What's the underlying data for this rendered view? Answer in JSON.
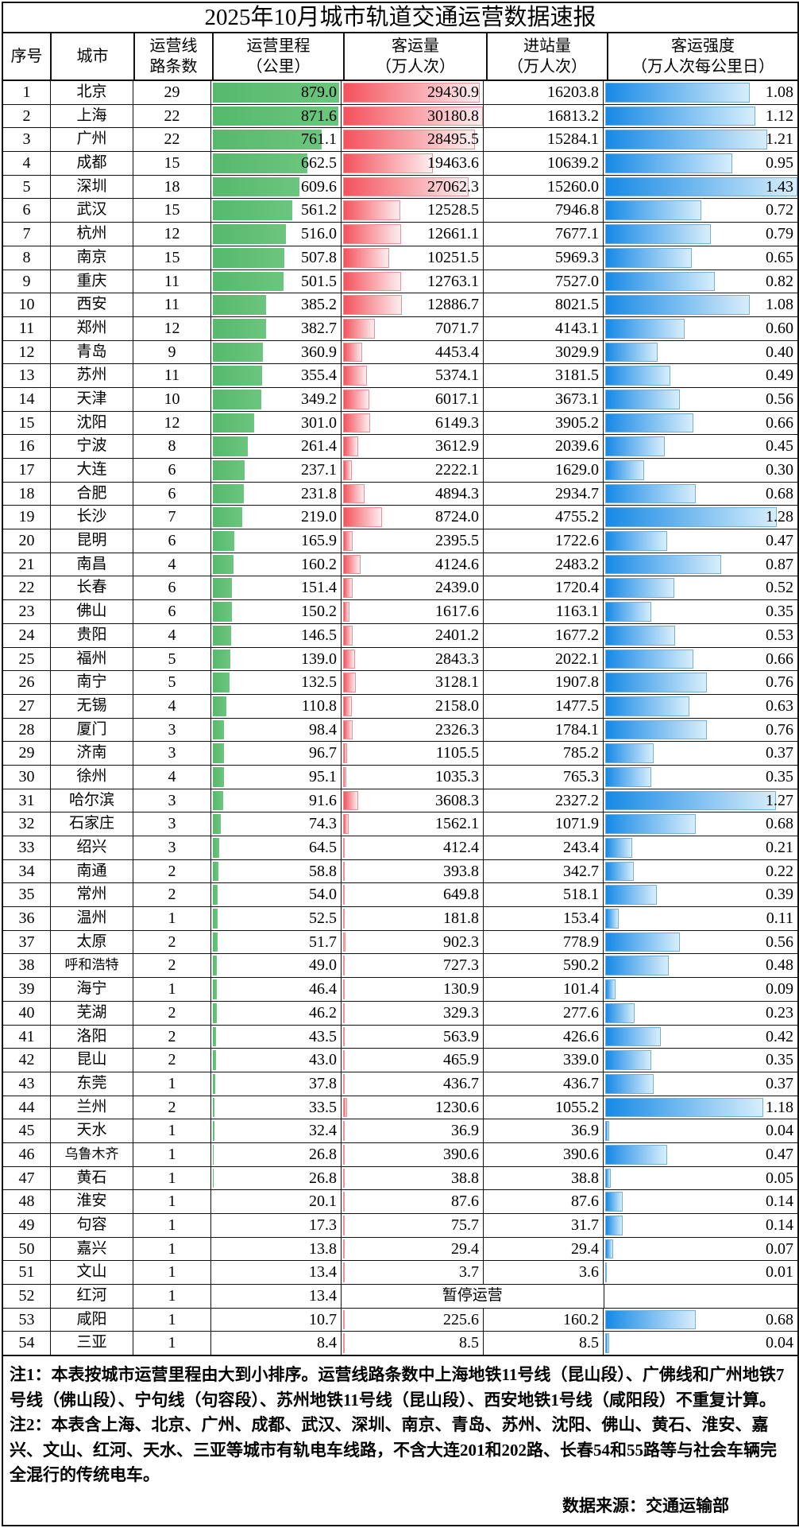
{
  "title": "2025年10月城市轨道交通运营数据速报",
  "chart_data": {
    "type": "table",
    "title": "2025年10月城市轨道交通运营数据速报",
    "columns": [
      {
        "id": "rank",
        "line1": "序号",
        "line2": ""
      },
      {
        "id": "city",
        "line1": "城市",
        "line2": ""
      },
      {
        "id": "lines",
        "line1": "运营线",
        "line2": "路条数"
      },
      {
        "id": "mileage",
        "line1": "运营里程",
        "line2": "（公里）"
      },
      {
        "id": "volume",
        "line1": "客运量",
        "line2": "（万人次）"
      },
      {
        "id": "entries",
        "line1": "进站量",
        "line2": "（万人次）"
      },
      {
        "id": "intensity",
        "line1": "客运强度",
        "line2": "（万人次每公里日）"
      }
    ],
    "bar_styles": {
      "mileage": {
        "type": "data-bar",
        "color": "#5cbd72"
      },
      "volume": {
        "type": "data-bar-gradient",
        "color_left": "#f4525c",
        "color_right": "#fdeef0",
        "border": "#ef9096"
      },
      "intensity": {
        "type": "data-bar-gradient",
        "color_left": "#1689e6",
        "color_right": "#d7eefb",
        "border": "#74b0d8"
      }
    },
    "suspended_label": "暂停运营",
    "rows": [
      {
        "rank": 1,
        "city": "北京",
        "lines": 29,
        "mileage": "879.0",
        "volume": "29430.9",
        "entries": "16203.8",
        "intensity": "1.08"
      },
      {
        "rank": 2,
        "city": "上海",
        "lines": 22,
        "mileage": "871.6",
        "volume": "30180.8",
        "entries": "16813.2",
        "intensity": "1.12"
      },
      {
        "rank": 3,
        "city": "广州",
        "lines": 22,
        "mileage": "761.1",
        "volume": "28495.5",
        "entries": "15284.1",
        "intensity": "1.21"
      },
      {
        "rank": 4,
        "city": "成都",
        "lines": 15,
        "mileage": "662.5",
        "volume": "19463.6",
        "entries": "10639.2",
        "intensity": "0.95"
      },
      {
        "rank": 5,
        "city": "深圳",
        "lines": 18,
        "mileage": "609.6",
        "volume": "27062.3",
        "entries": "15260.0",
        "intensity": "1.43"
      },
      {
        "rank": 6,
        "city": "武汉",
        "lines": 15,
        "mileage": "561.2",
        "volume": "12528.5",
        "entries": "7946.8",
        "intensity": "0.72"
      },
      {
        "rank": 7,
        "city": "杭州",
        "lines": 12,
        "mileage": "516.0",
        "volume": "12661.1",
        "entries": "7677.1",
        "intensity": "0.79"
      },
      {
        "rank": 8,
        "city": "南京",
        "lines": 15,
        "mileage": "507.8",
        "volume": "10251.5",
        "entries": "5969.3",
        "intensity": "0.65"
      },
      {
        "rank": 9,
        "city": "重庆",
        "lines": 11,
        "mileage": "501.5",
        "volume": "12763.1",
        "entries": "7527.0",
        "intensity": "0.82"
      },
      {
        "rank": 10,
        "city": "西安",
        "lines": 11,
        "mileage": "385.2",
        "volume": "12886.7",
        "entries": "8021.5",
        "intensity": "1.08"
      },
      {
        "rank": 11,
        "city": "郑州",
        "lines": 12,
        "mileage": "382.7",
        "volume": "7071.7",
        "entries": "4143.1",
        "intensity": "0.60"
      },
      {
        "rank": 12,
        "city": "青岛",
        "lines": 9,
        "mileage": "360.9",
        "volume": "4453.4",
        "entries": "3029.9",
        "intensity": "0.40"
      },
      {
        "rank": 13,
        "city": "苏州",
        "lines": 11,
        "mileage": "355.4",
        "volume": "5374.1",
        "entries": "3181.5",
        "intensity": "0.49"
      },
      {
        "rank": 14,
        "city": "天津",
        "lines": 10,
        "mileage": "349.2",
        "volume": "6017.1",
        "entries": "3673.1",
        "intensity": "0.56"
      },
      {
        "rank": 15,
        "city": "沈阳",
        "lines": 12,
        "mileage": "301.0",
        "volume": "6149.3",
        "entries": "3905.2",
        "intensity": "0.66"
      },
      {
        "rank": 16,
        "city": "宁波",
        "lines": 8,
        "mileage": "261.4",
        "volume": "3612.9",
        "entries": "2039.6",
        "intensity": "0.45"
      },
      {
        "rank": 17,
        "city": "大连",
        "lines": 6,
        "mileage": "237.1",
        "volume": "2222.1",
        "entries": "1629.0",
        "intensity": "0.30"
      },
      {
        "rank": 18,
        "city": "合肥",
        "lines": 6,
        "mileage": "231.8",
        "volume": "4894.3",
        "entries": "2934.7",
        "intensity": "0.68"
      },
      {
        "rank": 19,
        "city": "长沙",
        "lines": 7,
        "mileage": "219.0",
        "volume": "8724.0",
        "entries": "4755.2",
        "intensity": "1.28"
      },
      {
        "rank": 20,
        "city": "昆明",
        "lines": 6,
        "mileage": "165.9",
        "volume": "2395.5",
        "entries": "1722.6",
        "intensity": "0.47"
      },
      {
        "rank": 21,
        "city": "南昌",
        "lines": 4,
        "mileage": "160.2",
        "volume": "4124.6",
        "entries": "2483.2",
        "intensity": "0.87"
      },
      {
        "rank": 22,
        "city": "长春",
        "lines": 6,
        "mileage": "151.4",
        "volume": "2439.0",
        "entries": "1720.4",
        "intensity": "0.52"
      },
      {
        "rank": 23,
        "city": "佛山",
        "lines": 6,
        "mileage": "150.2",
        "volume": "1617.6",
        "entries": "1163.1",
        "intensity": "0.35"
      },
      {
        "rank": 24,
        "city": "贵阳",
        "lines": 4,
        "mileage": "146.5",
        "volume": "2401.2",
        "entries": "1677.2",
        "intensity": "0.53"
      },
      {
        "rank": 25,
        "city": "福州",
        "lines": 5,
        "mileage": "139.0",
        "volume": "2843.3",
        "entries": "2022.1",
        "intensity": "0.66"
      },
      {
        "rank": 26,
        "city": "南宁",
        "lines": 5,
        "mileage": "132.5",
        "volume": "3128.1",
        "entries": "1907.8",
        "intensity": "0.76"
      },
      {
        "rank": 27,
        "city": "无锡",
        "lines": 4,
        "mileage": "110.8",
        "volume": "2158.0",
        "entries": "1477.5",
        "intensity": "0.63"
      },
      {
        "rank": 28,
        "city": "厦门",
        "lines": 3,
        "mileage": "98.4",
        "volume": "2326.3",
        "entries": "1784.1",
        "intensity": "0.76"
      },
      {
        "rank": 29,
        "city": "济南",
        "lines": 3,
        "mileage": "96.7",
        "volume": "1105.5",
        "entries": "785.2",
        "intensity": "0.37"
      },
      {
        "rank": 30,
        "city": "徐州",
        "lines": 4,
        "mileage": "95.1",
        "volume": "1035.3",
        "entries": "765.3",
        "intensity": "0.35"
      },
      {
        "rank": 31,
        "city": "哈尔滨",
        "lines": 3,
        "mileage": "91.6",
        "volume": "3608.3",
        "entries": "2327.2",
        "intensity": "1.27"
      },
      {
        "rank": 32,
        "city": "石家庄",
        "lines": 3,
        "mileage": "74.3",
        "volume": "1562.1",
        "entries": "1071.9",
        "intensity": "0.68"
      },
      {
        "rank": 33,
        "city": "绍兴",
        "lines": 3,
        "mileage": "64.5",
        "volume": "412.4",
        "entries": "243.4",
        "intensity": "0.21"
      },
      {
        "rank": 34,
        "city": "南通",
        "lines": 2,
        "mileage": "58.8",
        "volume": "393.8",
        "entries": "342.7",
        "intensity": "0.22"
      },
      {
        "rank": 35,
        "city": "常州",
        "lines": 2,
        "mileage": "54.0",
        "volume": "649.8",
        "entries": "518.1",
        "intensity": "0.39"
      },
      {
        "rank": 36,
        "city": "温州",
        "lines": 1,
        "mileage": "52.5",
        "volume": "181.8",
        "entries": "153.4",
        "intensity": "0.11"
      },
      {
        "rank": 37,
        "city": "太原",
        "lines": 2,
        "mileage": "51.7",
        "volume": "902.3",
        "entries": "778.9",
        "intensity": "0.56"
      },
      {
        "rank": 38,
        "city": "呼和浩特",
        "lines": 2,
        "mileage": "49.0",
        "volume": "727.3",
        "entries": "590.2",
        "intensity": "0.48"
      },
      {
        "rank": 39,
        "city": "海宁",
        "lines": 1,
        "mileage": "46.4",
        "volume": "130.9",
        "entries": "101.4",
        "intensity": "0.09"
      },
      {
        "rank": 40,
        "city": "芜湖",
        "lines": 2,
        "mileage": "46.2",
        "volume": "329.3",
        "entries": "277.6",
        "intensity": "0.23"
      },
      {
        "rank": 41,
        "city": "洛阳",
        "lines": 2,
        "mileage": "43.5",
        "volume": "563.9",
        "entries": "426.6",
        "intensity": "0.42"
      },
      {
        "rank": 42,
        "city": "昆山",
        "lines": 2,
        "mileage": "43.0",
        "volume": "465.9",
        "entries": "339.0",
        "intensity": "0.35"
      },
      {
        "rank": 43,
        "city": "东莞",
        "lines": 1,
        "mileage": "37.8",
        "volume": "436.7",
        "entries": "436.7",
        "intensity": "0.37"
      },
      {
        "rank": 44,
        "city": "兰州",
        "lines": 2,
        "mileage": "33.5",
        "volume": "1230.6",
        "entries": "1055.2",
        "intensity": "1.18"
      },
      {
        "rank": 45,
        "city": "天水",
        "lines": 1,
        "mileage": "32.4",
        "volume": "36.9",
        "entries": "36.9",
        "intensity": "0.04"
      },
      {
        "rank": 46,
        "city": "乌鲁木齐",
        "lines": 1,
        "mileage": "26.8",
        "volume": "390.6",
        "entries": "390.6",
        "intensity": "0.47"
      },
      {
        "rank": 47,
        "city": "黄石",
        "lines": 1,
        "mileage": "26.8",
        "volume": "38.8",
        "entries": "38.8",
        "intensity": "0.05"
      },
      {
        "rank": 48,
        "city": "淮安",
        "lines": 1,
        "mileage": "20.1",
        "volume": "87.6",
        "entries": "87.6",
        "intensity": "0.14"
      },
      {
        "rank": 49,
        "city": "句容",
        "lines": 1,
        "mileage": "17.3",
        "volume": "75.7",
        "entries": "31.7",
        "intensity": "0.14"
      },
      {
        "rank": 50,
        "city": "嘉兴",
        "lines": 1,
        "mileage": "13.8",
        "volume": "29.4",
        "entries": "29.4",
        "intensity": "0.07"
      },
      {
        "rank": 51,
        "city": "文山",
        "lines": 1,
        "mileage": "13.4",
        "volume": "3.7",
        "entries": "3.6",
        "intensity": "0.01"
      },
      {
        "rank": 52,
        "city": "红河",
        "lines": 1,
        "mileage": "13.4",
        "suspended": true
      },
      {
        "rank": 53,
        "city": "咸阳",
        "lines": 1,
        "mileage": "10.7",
        "volume": "225.6",
        "entries": "160.2",
        "intensity": "0.68"
      },
      {
        "rank": 54,
        "city": "三亚",
        "lines": 1,
        "mileage": "8.4",
        "volume": "8.5",
        "entries": "8.5",
        "intensity": "0.04"
      }
    ]
  },
  "notes": {
    "note1": "注1：本表按城市运营里程由大到小排序。运营线路条数中上海地铁11号线（昆山段）、广佛线和广州地铁7号线（佛山段）、宁句线（句容段）、苏州地铁11号线（昆山段）、西安地铁1号线（咸阳段）不重复计算。",
    "note2": "注2：本表含上海、北京、广州、成都、武汉、深圳、南京、青岛、苏州、沈阳、佛山、黄石、淮安、嘉兴、文山、红河、天水、三亚等城市有轨电车线路，不含大连201和202路、长春54和55路等与社会车辆完全混行的传统电车。",
    "source": "数据来源：交通运输部"
  }
}
